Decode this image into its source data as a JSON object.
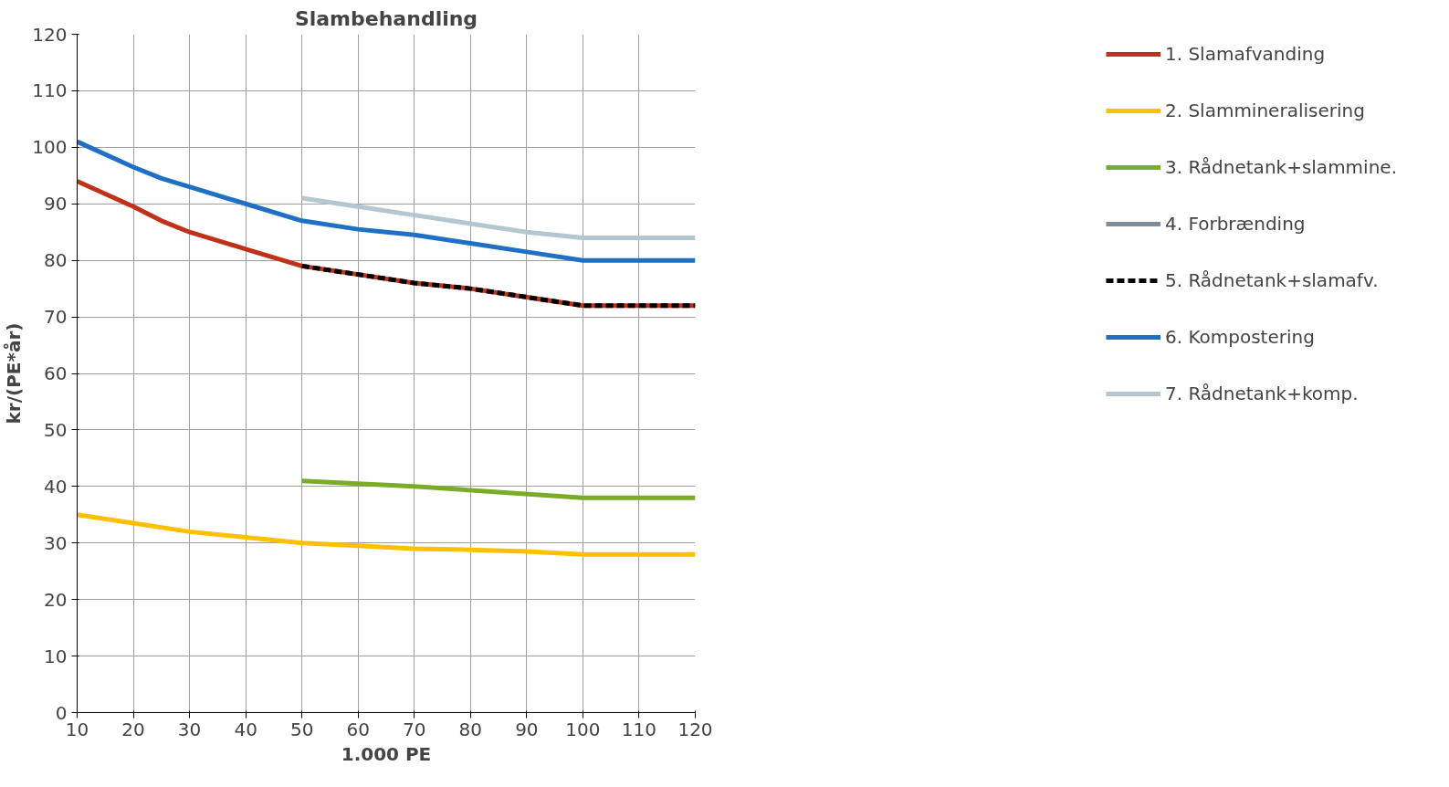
{
  "chart_data": {
    "type": "line",
    "title": "Slambehandling",
    "xlabel": "1.000 PE",
    "ylabel": "kr/(PE*år)",
    "xlim": [
      10,
      120
    ],
    "xticks": [
      10,
      20,
      30,
      40,
      50,
      60,
      70,
      80,
      90,
      100,
      110,
      120
    ],
    "ylim": [
      0,
      120
    ],
    "yticks": [
      0,
      10,
      20,
      30,
      40,
      50,
      60,
      70,
      80,
      90,
      100,
      110,
      120
    ],
    "grid": true,
    "legend": "right",
    "marker": "none",
    "series": [
      {
        "name": "1. Slamafvanding",
        "color": "#c0311a",
        "x": [
          10,
          20,
          25,
          30,
          40,
          50,
          60,
          70,
          80,
          90,
          100,
          120
        ],
        "values": [
          94,
          89.5,
          87,
          85,
          82,
          79,
          77.5,
          76,
          75,
          73.5,
          72,
          72
        ]
      },
      {
        "name": "2. Slammineralisering",
        "color": "#ffc000",
        "x": [
          10,
          20,
          30,
          40,
          50,
          60,
          70,
          80,
          90,
          100,
          120
        ],
        "values": [
          35,
          33.5,
          32,
          31,
          30,
          29.5,
          29,
          28.8,
          28.5,
          28,
          28
        ]
      },
      {
        "name": "3. Rådnetank+slammine.",
        "color": "#7aac2a",
        "x": [
          50,
          70,
          100,
          120
        ],
        "values": [
          41,
          40,
          38,
          38
        ]
      },
      {
        "name": "4. Forbrænding",
        "color": "#7f8c99"
      },
      {
        "name": "5. Rådnetank+slamafv.",
        "color": "#000000",
        "line_style": "dashed",
        "x": [
          50,
          60,
          70,
          80,
          90,
          100,
          120
        ],
        "values": [
          79,
          77.5,
          76,
          75,
          73.5,
          72,
          72
        ]
      },
      {
        "name": "6. Kompostering",
        "color": "#1f6fc5",
        "x": [
          10,
          20,
          25,
          30,
          40,
          50,
          60,
          70,
          80,
          90,
          100,
          120
        ],
        "values": [
          101,
          96.5,
          94.5,
          93,
          90,
          87,
          85.5,
          84.5,
          83,
          81.5,
          80,
          80
        ]
      },
      {
        "name": "7. Rådnetank+komp.",
        "color": "#b4c7d0",
        "x": [
          50,
          60,
          70,
          80,
          90,
          100,
          120
        ],
        "values": [
          91,
          89.5,
          88,
          86.5,
          85,
          84,
          84
        ]
      }
    ]
  }
}
